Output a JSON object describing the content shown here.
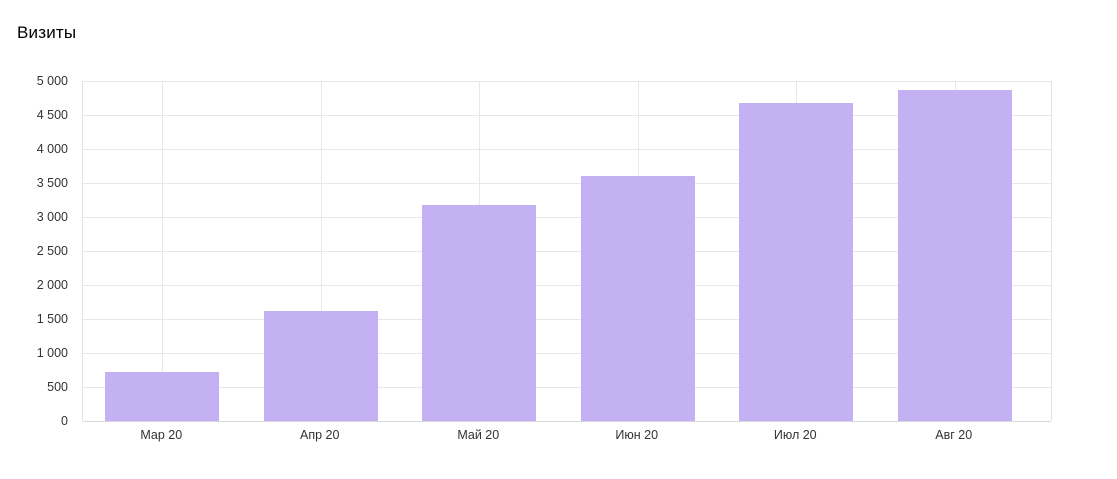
{
  "chart_data": {
    "type": "bar",
    "title": "Визиты",
    "categories": [
      "Мар 20",
      "Апр 20",
      "Май 20",
      "Июн 20",
      "Июл 20",
      "Авг 20"
    ],
    "values": [
      720,
      1620,
      3170,
      3610,
      4680,
      4870
    ],
    "xlabel": "",
    "ylabel": "",
    "ylim": [
      0,
      5000
    ],
    "y_tick_step": 500,
    "y_tick_labels": [
      "0",
      "500",
      "1 000",
      "1 500",
      "2 000",
      "2 500",
      "3 000",
      "3 500",
      "4 000",
      "4 500",
      "5 000"
    ],
    "grid": true,
    "legend": "none",
    "colors": {
      "bar_fill": "#c4b1f3",
      "grid_line": "#e8e8e8",
      "zero_line": "#d9d9d9",
      "axis_text": "#333333",
      "title_text": "#000000",
      "background": "#ffffff"
    }
  }
}
